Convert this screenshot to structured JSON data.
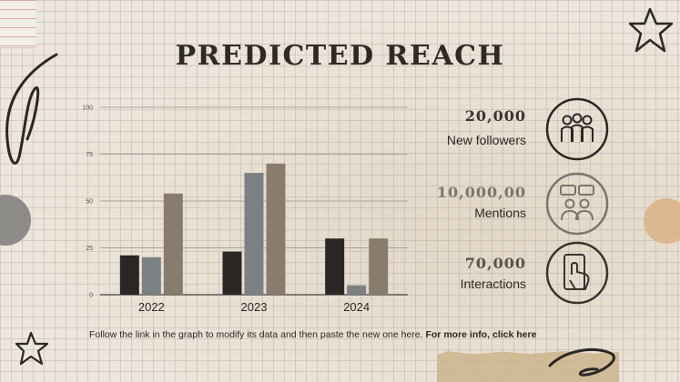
{
  "title": "PREDICTED REACH",
  "chart_data": {
    "type": "bar",
    "categories": [
      "2022",
      "2023",
      "2024"
    ],
    "series": [
      {
        "values": [
          21,
          23,
          30
        ]
      },
      {
        "values": [
          20,
          65,
          5
        ]
      },
      {
        "values": [
          54,
          70,
          30
        ]
      }
    ],
    "series_colors": [
      "#2b2724",
      "#7b8083",
      "#8a7c6d"
    ],
    "yticks": [
      "0",
      "25",
      "50",
      "75",
      "100"
    ],
    "ylim": [
      0,
      100
    ],
    "grid": true
  },
  "stats": [
    {
      "value": "20,000",
      "label": "New followers",
      "icon": "users-group-icon"
    },
    {
      "value": "10,000,00",
      "label": "Mentions",
      "icon": "chat-people-icon"
    },
    {
      "value": "70,000",
      "label": "Interactions",
      "icon": "phone-tap-icon"
    }
  ],
  "footer": {
    "text": "Follow the link in the graph to modify its data and then paste the new one here.",
    "link": "For more info, click here"
  }
}
